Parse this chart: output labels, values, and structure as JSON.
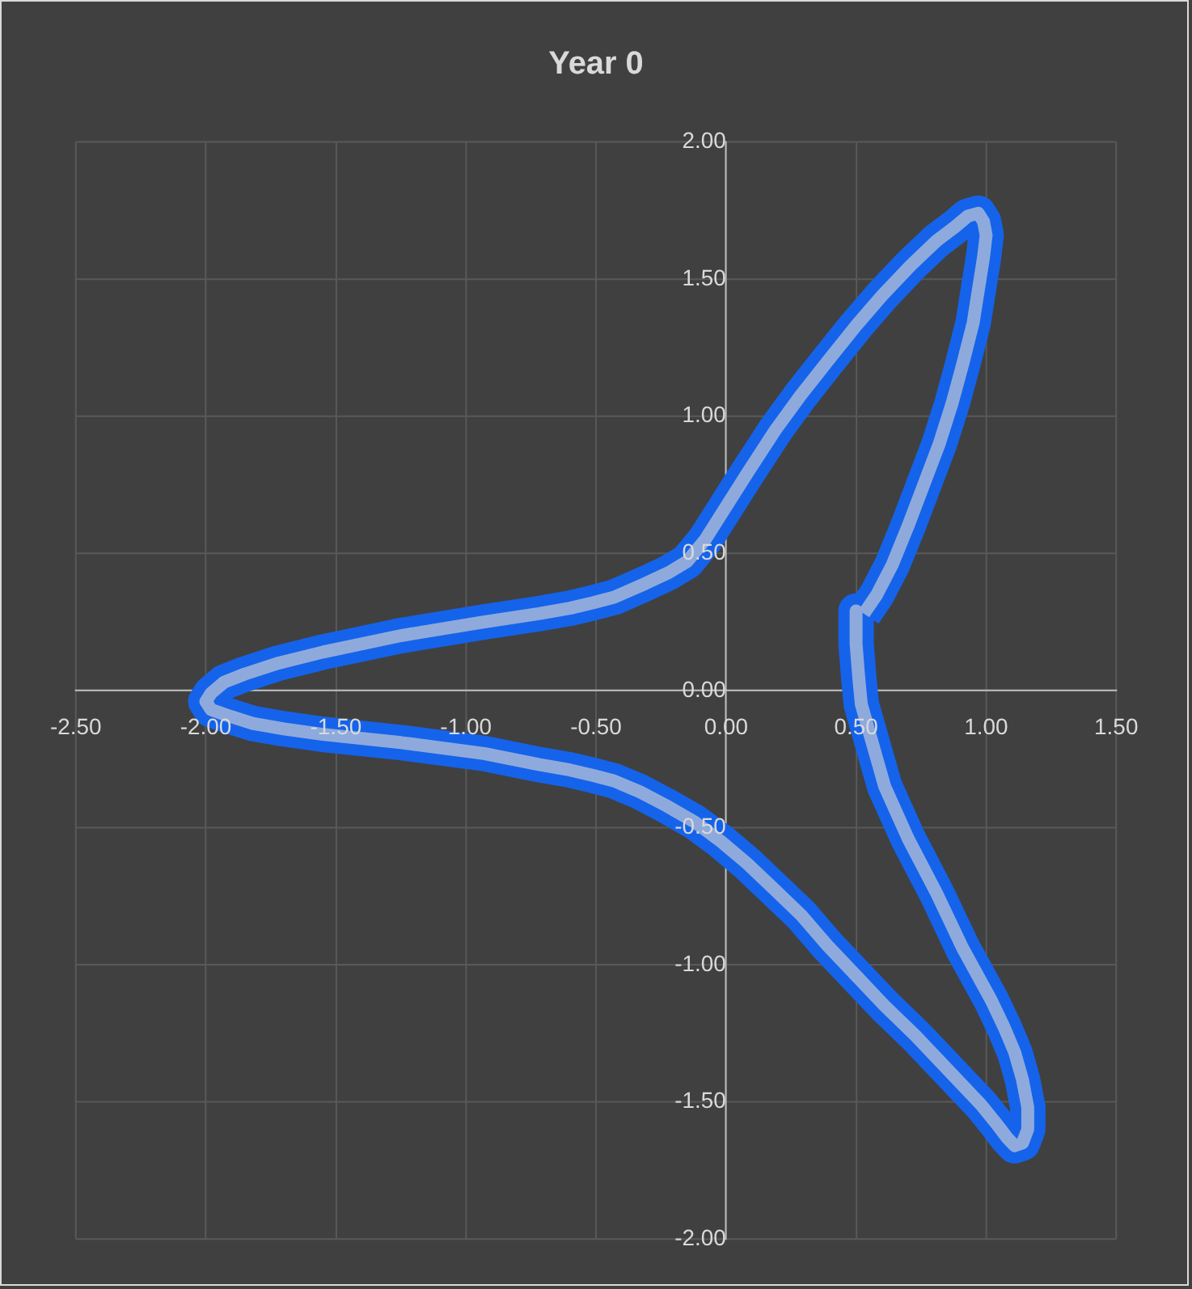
{
  "chart_data": {
    "type": "line",
    "title": "Year 0",
    "x": [
      0.5,
      0.5,
      0.51,
      0.52,
      0.55,
      0.58,
      0.61,
      0.7,
      0.81,
      0.91,
      1.02,
      1.07,
      1.11,
      1.14,
      1.16,
      1.16,
      1.14,
      1.11,
      1.08,
      1.04,
      0.98,
      0.91,
      0.82,
      0.73,
      0.61,
      0.5,
      0.39,
      0.29,
      0.18,
      0.08,
      -0.02,
      -0.12,
      -0.23,
      -0.33,
      -0.43,
      -0.51,
      -0.6,
      -0.72,
      -0.93,
      -1.25,
      -1.55,
      -1.7,
      -1.82,
      -1.92,
      -1.98,
      -2.0,
      -1.98,
      -1.93,
      -1.85,
      -1.72,
      -1.55,
      -1.25,
      -0.93,
      -0.72,
      -0.6,
      -0.51,
      -0.43,
      -0.31,
      -0.22,
      -0.15,
      -0.08,
      -0.02,
      0.08,
      0.19,
      0.29,
      0.39,
      0.5,
      0.6,
      0.71,
      0.81,
      0.88,
      0.93,
      0.97,
      0.99,
      1.0,
      0.99,
      0.97,
      0.95,
      0.91,
      0.87,
      0.82,
      0.76,
      0.7,
      0.64,
      0.58,
      0.53
    ],
    "series": [
      {
        "color": "#1563ea",
        "values": [
          0.29,
          0.17,
          0.05,
          -0.05,
          -0.15,
          -0.25,
          -0.35,
          -0.54,
          -0.74,
          -0.94,
          -1.13,
          -1.23,
          -1.32,
          -1.42,
          -1.52,
          -1.6,
          -1.65,
          -1.66,
          -1.63,
          -1.58,
          -1.51,
          -1.44,
          -1.35,
          -1.26,
          -1.15,
          -1.04,
          -0.93,
          -0.82,
          -0.72,
          -0.63,
          -0.55,
          -0.48,
          -0.42,
          -0.37,
          -0.33,
          -0.31,
          -0.29,
          -0.27,
          -0.23,
          -0.19,
          -0.16,
          -0.14,
          -0.12,
          -0.09,
          -0.07,
          -0.04,
          -0.01,
          0.03,
          0.06,
          0.1,
          0.14,
          0.2,
          0.25,
          0.28,
          0.3,
          0.32,
          0.34,
          0.39,
          0.43,
          0.47,
          0.55,
          0.64,
          0.79,
          0.95,
          1.08,
          1.2,
          1.33,
          1.44,
          1.55,
          1.64,
          1.69,
          1.73,
          1.74,
          1.71,
          1.66,
          1.58,
          1.46,
          1.34,
          1.19,
          1.05,
          0.9,
          0.75,
          0.6,
          0.46,
          0.35,
          0.28
        ]
      },
      {
        "color": "#8eaadc",
        "values": [
          0.29,
          0.17,
          0.05,
          -0.05,
          -0.15,
          -0.25,
          -0.35,
          -0.54,
          -0.74,
          -0.94,
          -1.13,
          -1.23,
          -1.32,
          -1.42,
          -1.52,
          -1.6,
          -1.65,
          -1.66,
          -1.63,
          -1.58,
          -1.51,
          -1.44,
          -1.35,
          -1.26,
          -1.15,
          -1.04,
          -0.93,
          -0.82,
          -0.72,
          -0.63,
          -0.55,
          -0.48,
          -0.42,
          -0.37,
          -0.33,
          -0.31,
          -0.29,
          -0.27,
          -0.23,
          -0.19,
          -0.16,
          -0.14,
          -0.12,
          -0.09,
          -0.07,
          -0.04,
          -0.01,
          0.03,
          0.06,
          0.1,
          0.14,
          0.2,
          0.25,
          0.28,
          0.3,
          0.32,
          0.34,
          0.39,
          0.43,
          0.47,
          0.55,
          0.64,
          0.79,
          0.95,
          1.08,
          1.2,
          1.33,
          1.44,
          1.55,
          1.64,
          1.69,
          1.73,
          1.74,
          1.71,
          1.66,
          1.58,
          1.46,
          1.34,
          1.19,
          1.05,
          0.9,
          0.75,
          0.6,
          0.46,
          0.35,
          0.28
        ]
      }
    ],
    "xlim": [
      -2.5,
      1.5
    ],
    "ylim": [
      -2,
      2
    ],
    "xticks": [
      {
        "value": -2.5,
        "label": "-2.50"
      },
      {
        "value": -2,
        "label": "-2.00"
      },
      {
        "value": -1.5,
        "label": "-1.50"
      },
      {
        "value": -1,
        "label": "-1.00"
      },
      {
        "value": -0.5,
        "label": "-0.50"
      },
      {
        "value": 0,
        "label": "0.00"
      },
      {
        "value": 0.5,
        "label": "0.50"
      },
      {
        "value": 1,
        "label": "1.00"
      },
      {
        "value": 1.5,
        "label": "1.50"
      }
    ],
    "yticks": [
      {
        "value": -2,
        "label": "-2.00"
      },
      {
        "value": -1.5,
        "label": "-1.50"
      },
      {
        "value": -1,
        "label": "-1.00"
      },
      {
        "value": -0.5,
        "label": "-0.50"
      },
      {
        "value": 0,
        "label": "0.00"
      },
      {
        "value": 0.5,
        "label": "0.50"
      },
      {
        "value": 1,
        "label": "1.00"
      },
      {
        "value": 1.5,
        "label": "1.50"
      },
      {
        "value": 2,
        "label": "2.00"
      }
    ],
    "grid": true,
    "marker": "none",
    "line_style": "solid"
  }
}
